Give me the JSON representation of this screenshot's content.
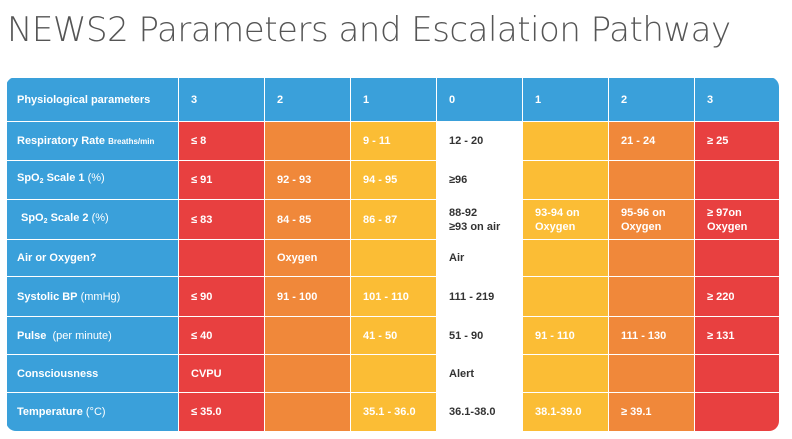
{
  "title": "NEWS2 Parameters and Escalation Pathway",
  "colors": {
    "header_blue": "#3aa0da",
    "score_3": "#e84040",
    "score_2": "#f0883a",
    "score_1": "#fbbd35",
    "score_0": "#ffffff"
  },
  "header": {
    "label": "Physiological parameters",
    "scores": [
      "3",
      "2",
      "1",
      "0",
      "1",
      "2",
      "3"
    ]
  },
  "rows": [
    {
      "label_main": "Respiratory Rate",
      "label_small": "Breaths/min",
      "cells": [
        "≤ 8",
        "",
        "9 - 11",
        "12 - 20",
        "",
        "21 - 24",
        "≥ 25"
      ]
    },
    {
      "label_prefix": "SpO",
      "label_sub": "2",
      "label_rest": " Scale 1 ",
      "label_unit": "(%)",
      "cells": [
        "≤ 91",
        "92 - 93",
        "94 - 95",
        "≥96",
        "",
        "",
        ""
      ]
    },
    {
      "label_prefix": "SpO",
      "label_sub": "2",
      "label_rest": " Scale 2 ",
      "label_unit": "(%)",
      "cells": [
        "≤ 83",
        "84 - 85",
        "86 - 87",
        "88-92\n≥93 on air",
        "93-94 on\nOxygen",
        "95-96 on\nOxygen",
        "≥ 97on\nOxygen"
      ]
    },
    {
      "label_main": "Air or Oxygen?",
      "cells": [
        "",
        "Oxygen",
        "",
        "Air",
        "",
        "",
        ""
      ]
    },
    {
      "label_main": "Systolic BP",
      "label_unit": " (mmHg)",
      "cells": [
        "≤ 90",
        "91 - 100",
        "101 - 110",
        "111 - 219",
        "",
        "",
        "≥ 220"
      ]
    },
    {
      "label_main": "Pulse",
      "label_unit": "  (per minute)",
      "cells": [
        "≤ 40",
        "",
        "41 - 50",
        "51 - 90",
        "91 - 110",
        "111 - 130",
        "≥ 131"
      ]
    },
    {
      "label_main": "Consciousness",
      "cells": [
        "CVPU",
        "",
        "",
        "Alert",
        "",
        "",
        ""
      ]
    },
    {
      "label_main": "Temperature",
      "label_unit": " (°C)",
      "cells": [
        "≤ 35.0",
        "",
        "35.1 - 36.0",
        "36.1-38.0",
        "38.1-39.0",
        "≥ 39.1",
        ""
      ]
    }
  ]
}
